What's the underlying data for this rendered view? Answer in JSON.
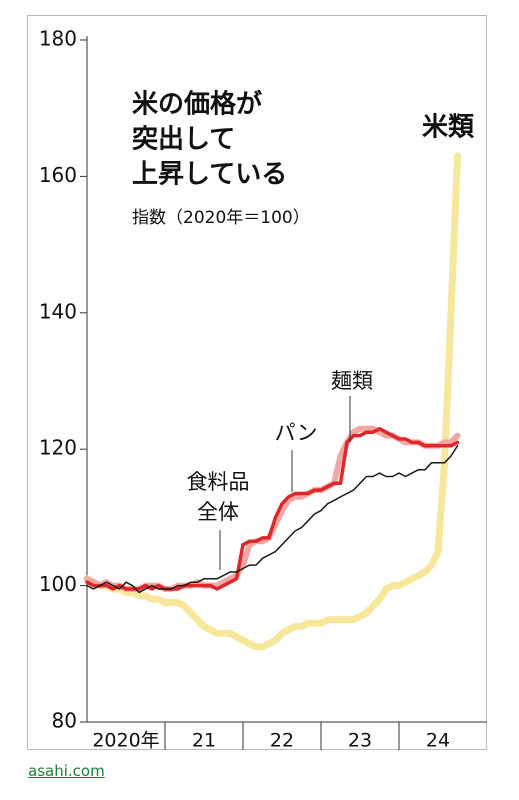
{
  "chart_data": {
    "type": "line",
    "title": [
      "米の価格が",
      "突出して",
      "上昇している"
    ],
    "subtitle": "指数（2020年＝100）",
    "source": "asahi.com",
    "xlim": [
      0,
      60
    ],
    "xticks": [
      {
        "value": 6,
        "label": "2020年"
      },
      {
        "value": 18,
        "label": "21"
      },
      {
        "value": 30,
        "label": "22"
      },
      {
        "value": 42,
        "label": "23"
      },
      {
        "value": 54,
        "label": "24"
      }
    ],
    "ylim": [
      80,
      180
    ],
    "yticks": [
      80,
      100,
      120,
      140,
      160,
      180
    ],
    "series": [
      {
        "name": "米類",
        "color": "#f6e79a",
        "values": [
          101,
          100.5,
          100,
          100,
          99.5,
          99.5,
          99,
          99,
          98.5,
          98.5,
          98,
          98,
          97.5,
          97.5,
          97.5,
          97,
          96,
          95,
          94,
          93.5,
          93,
          93,
          93,
          92.5,
          92,
          91.5,
          91,
          91,
          91.5,
          92,
          93,
          93.5,
          94,
          94,
          94.5,
          94.5,
          94.5,
          95,
          95,
          95,
          95,
          95,
          95.5,
          96,
          97,
          98,
          99.5,
          100,
          100,
          100.5,
          101,
          101.5,
          102,
          103,
          105,
          118,
          140,
          163
        ]
      },
      {
        "name": "麺類",
        "color": "#f3a7a4",
        "values": [
          101,
          100.5,
          100,
          100.5,
          100,
          100,
          99.5,
          99.5,
          99.5,
          100,
          100,
          100,
          99.5,
          99.5,
          100,
          100,
          100,
          100.5,
          100,
          100,
          100,
          100.5,
          101,
          101.5,
          103,
          106,
          106.5,
          106.5,
          107,
          109,
          111,
          112.5,
          113,
          113,
          113.5,
          114,
          114,
          114.5,
          115,
          119,
          121,
          122.5,
          123,
          123,
          123,
          122.5,
          122,
          122,
          121.5,
          121,
          121,
          121,
          120.5,
          120.5,
          120.5,
          121,
          121,
          122
        ]
      },
      {
        "name": "パン",
        "color": "#e0262b",
        "values": [
          100.5,
          100,
          100,
          100,
          99.5,
          100,
          99.5,
          99.5,
          99.5,
          100,
          99.5,
          100,
          99.5,
          99.5,
          99.5,
          100,
          100,
          100,
          100,
          100,
          99.5,
          100,
          100.5,
          101,
          106,
          106.5,
          106.5,
          107,
          107,
          110,
          112,
          113,
          113.5,
          113.5,
          113.5,
          114,
          114,
          114.5,
          115,
          115,
          121,
          122,
          122,
          122.5,
          122.5,
          123,
          122.5,
          122,
          121.5,
          121.5,
          121,
          121,
          120.5,
          120.5,
          120.5,
          120.5,
          120.5,
          121
        ]
      },
      {
        "name": "食料品全体",
        "color": "#1a1a1a",
        "values": [
          100,
          99.5,
          100,
          100.5,
          100,
          99.5,
          100.5,
          100,
          99,
          99.5,
          100,
          99.5,
          99.5,
          99.5,
          100,
          100,
          100.5,
          100.5,
          101,
          101,
          101,
          101.5,
          102,
          102,
          102.5,
          103,
          103,
          104,
          104.5,
          105,
          106,
          107,
          108,
          108.5,
          109.5,
          110.5,
          111,
          112,
          112.5,
          113,
          113.5,
          114,
          115,
          116,
          116,
          116.5,
          116,
          116,
          116.5,
          116,
          116.5,
          117,
          117,
          118,
          118,
          118,
          119,
          120.5
        ]
      }
    ]
  }
}
